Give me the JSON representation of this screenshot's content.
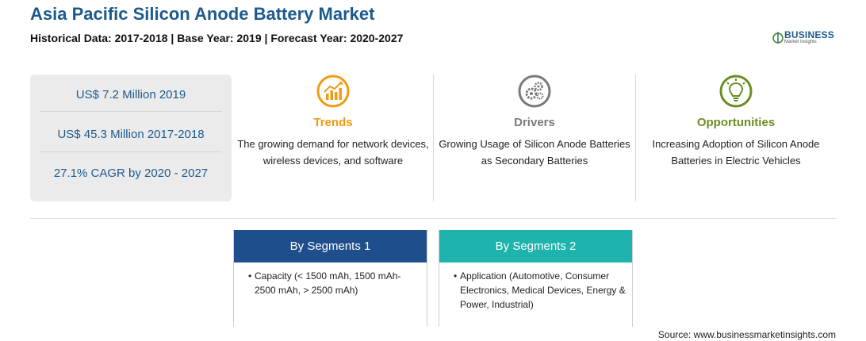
{
  "header": {
    "title": "Asia Pacific Silicon Anode Battery Market",
    "subtitle": "Historical Data: 2017-2018 | Base Year: 2019 | Forecast Year: 2020-2027"
  },
  "logo": {
    "name": "BUSINESS",
    "tagline": "Market Insights"
  },
  "stats": [
    {
      "text": "US$ 7.2 Million 2019"
    },
    {
      "text": "US$ 45.3 Million 2017-2018"
    },
    {
      "text": "27.1% CAGR by 2020 - 2027"
    }
  ],
  "factors": [
    {
      "title": "Trends",
      "text": "The growing demand for network devices, wireless devices, and software",
      "color": "#f29b12",
      "icon": "trend-chart-icon"
    },
    {
      "title": "Drivers",
      "text": "Growing Usage of Silicon Anode Batteries as Secondary Batteries",
      "color": "#7a7a7a",
      "icon": "gears-icon"
    },
    {
      "title": "Opportunities",
      "text": "Increasing Adoption of Silicon Anode Batteries in Electric Vehicles",
      "color": "#6b8e23",
      "icon": "lightbulb-icon"
    }
  ],
  "segments": [
    {
      "title": "By Segments 1",
      "item": "Capacity (< 1500 mAh, 1500 mAh-2500 mAh, > 2500 mAh)",
      "color": "#1f4e8c"
    },
    {
      "title": "By Segments 2",
      "item": "Application (Automotive, Consumer Electronics, Medical Devices, Energy & Power, Industrial)",
      "color": "#1fb3ad"
    }
  ],
  "source": "Source: www.businessmarketinsights.com"
}
